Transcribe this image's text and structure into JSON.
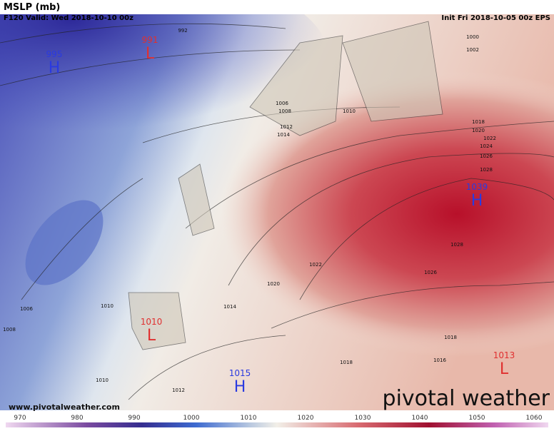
{
  "header": {
    "title": "MSLP (mb)",
    "valid": "F120 Valid: Wed 2018-10-10 00z",
    "init": "Init Fri 2018-10-05 00z EPS"
  },
  "centers": [
    {
      "letter": "L",
      "value": "991"
    },
    {
      "letter": "H",
      "value": "995"
    },
    {
      "letter": "H",
      "value": "1039"
    },
    {
      "letter": "L",
      "value": "1010"
    },
    {
      "letter": "H",
      "value": "1015"
    },
    {
      "letter": "L",
      "value": "1013"
    }
  ],
  "contour_labels": [
    "992",
    "1000",
    "1002",
    "1006",
    "1008",
    "1010",
    "1012",
    "1014",
    "1018",
    "1020",
    "1022",
    "1024",
    "1026",
    "1028",
    "1028",
    "1026",
    "1022",
    "1020",
    "1014",
    "1006",
    "1008",
    "1010",
    "1010",
    "1012",
    "1016",
    "1018",
    "1018"
  ],
  "footer": {
    "url": "www.pivotalweather.com",
    "brand": "pivotal weather"
  },
  "colorbar": {
    "ticks": [
      970,
      980,
      990,
      1000,
      1010,
      1020,
      1030,
      1040,
      1050,
      1060
    ]
  }
}
